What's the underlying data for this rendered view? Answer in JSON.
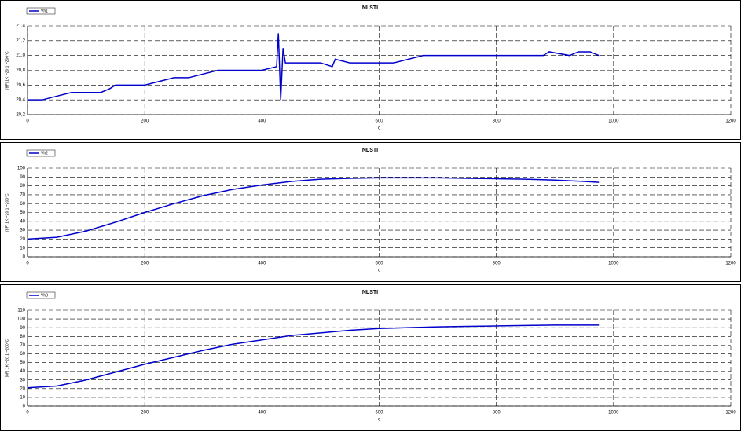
{
  "chart_data": [
    {
      "type": "line",
      "title": "NLSTI",
      "y_label": "[8F] 1K ~20 1 ~200°C",
      "x_label": "c",
      "x": [
        0,
        25,
        50,
        75,
        100,
        125,
        140,
        150,
        175,
        200,
        225,
        250,
        275,
        300,
        325,
        350,
        375,
        400,
        425,
        428,
        432,
        436,
        440,
        475,
        500,
        520,
        525,
        550,
        575,
        600,
        625,
        650,
        675,
        700,
        725,
        750,
        800,
        850,
        880,
        890,
        925,
        940,
        960,
        975
      ],
      "series": [
        {
          "name": "Vh1",
          "color": "#0000cc",
          "values": [
            20.4,
            20.4,
            20.45,
            20.5,
            20.5,
            20.5,
            20.55,
            20.6,
            20.6,
            20.6,
            20.65,
            20.7,
            20.7,
            20.75,
            20.8,
            20.8,
            20.8,
            20.8,
            20.85,
            21.3,
            20.4,
            21.1,
            20.9,
            20.9,
            20.9,
            20.85,
            20.95,
            20.9,
            20.9,
            20.9,
            20.9,
            20.95,
            21.0,
            21.0,
            21.0,
            21.0,
            21.0,
            21.0,
            21.0,
            21.05,
            21.0,
            21.05,
            21.05,
            21.0
          ]
        }
      ],
      "xlim": [
        0,
        1200
      ],
      "xticks": [
        0,
        200,
        400,
        600,
        800,
        1000,
        1200
      ],
      "ylim": [
        20.2,
        21.4
      ],
      "yticks": [
        {
          "value": 20.2,
          "label": "20,2"
        },
        {
          "value": 20.4,
          "label": "20,4"
        },
        {
          "value": 20.6,
          "label": "20,6"
        },
        {
          "value": 20.8,
          "label": "20,8"
        },
        {
          "value": 21.0,
          "label": "21,0"
        },
        {
          "value": 21.2,
          "label": "21,2"
        },
        {
          "value": 21.4,
          "label": "21,4"
        }
      ],
      "grid": true,
      "legend": "top-left"
    },
    {
      "type": "line",
      "title": "NLSTI",
      "y_label": "[8F] 1K ~20 1 ~200°C",
      "x_label": "c",
      "x": [
        0,
        50,
        100,
        150,
        200,
        250,
        300,
        350,
        400,
        450,
        500,
        550,
        600,
        650,
        700,
        750,
        800,
        850,
        900,
        950,
        975
      ],
      "series": [
        {
          "name": "Vh2",
          "color": "#0000cc",
          "values": [
            20,
            22,
            29,
            39,
            50,
            60,
            69,
            76,
            81,
            85,
            87.5,
            88.5,
            89,
            89,
            89,
            88.5,
            88,
            87.5,
            86.5,
            85,
            84
          ]
        }
      ],
      "xlim": [
        0,
        1200
      ],
      "xticks": [
        0,
        200,
        400,
        600,
        800,
        1000,
        1200
      ],
      "ylim": [
        0,
        100
      ],
      "yticks": [
        0,
        10,
        20,
        30,
        40,
        50,
        60,
        70,
        80,
        90,
        100
      ],
      "grid": true,
      "legend": "top-left"
    },
    {
      "type": "line",
      "title": "NLSTI",
      "y_label": "[8F] 1K ~20 1 ~200°C",
      "x_label": "c",
      "x": [
        0,
        50,
        100,
        150,
        200,
        250,
        300,
        350,
        400,
        450,
        500,
        550,
        600,
        650,
        700,
        750,
        800,
        850,
        900,
        950,
        975
      ],
      "series": [
        {
          "name": "Vh3",
          "color": "#0000cc",
          "values": [
            21,
            23,
            30,
            39,
            48,
            56,
            64,
            71,
            76,
            81,
            84,
            87,
            89,
            90,
            91,
            91.5,
            92,
            92.5,
            93,
            93,
            93
          ]
        }
      ],
      "xlim": [
        0,
        1200
      ],
      "xticks": [
        0,
        200,
        400,
        600,
        800,
        1000,
        1200
      ],
      "ylim": [
        0,
        110
      ],
      "yticks": [
        0,
        10,
        20,
        30,
        40,
        50,
        60,
        70,
        80,
        90,
        100,
        110
      ],
      "grid": true,
      "legend": "top-left"
    }
  ]
}
